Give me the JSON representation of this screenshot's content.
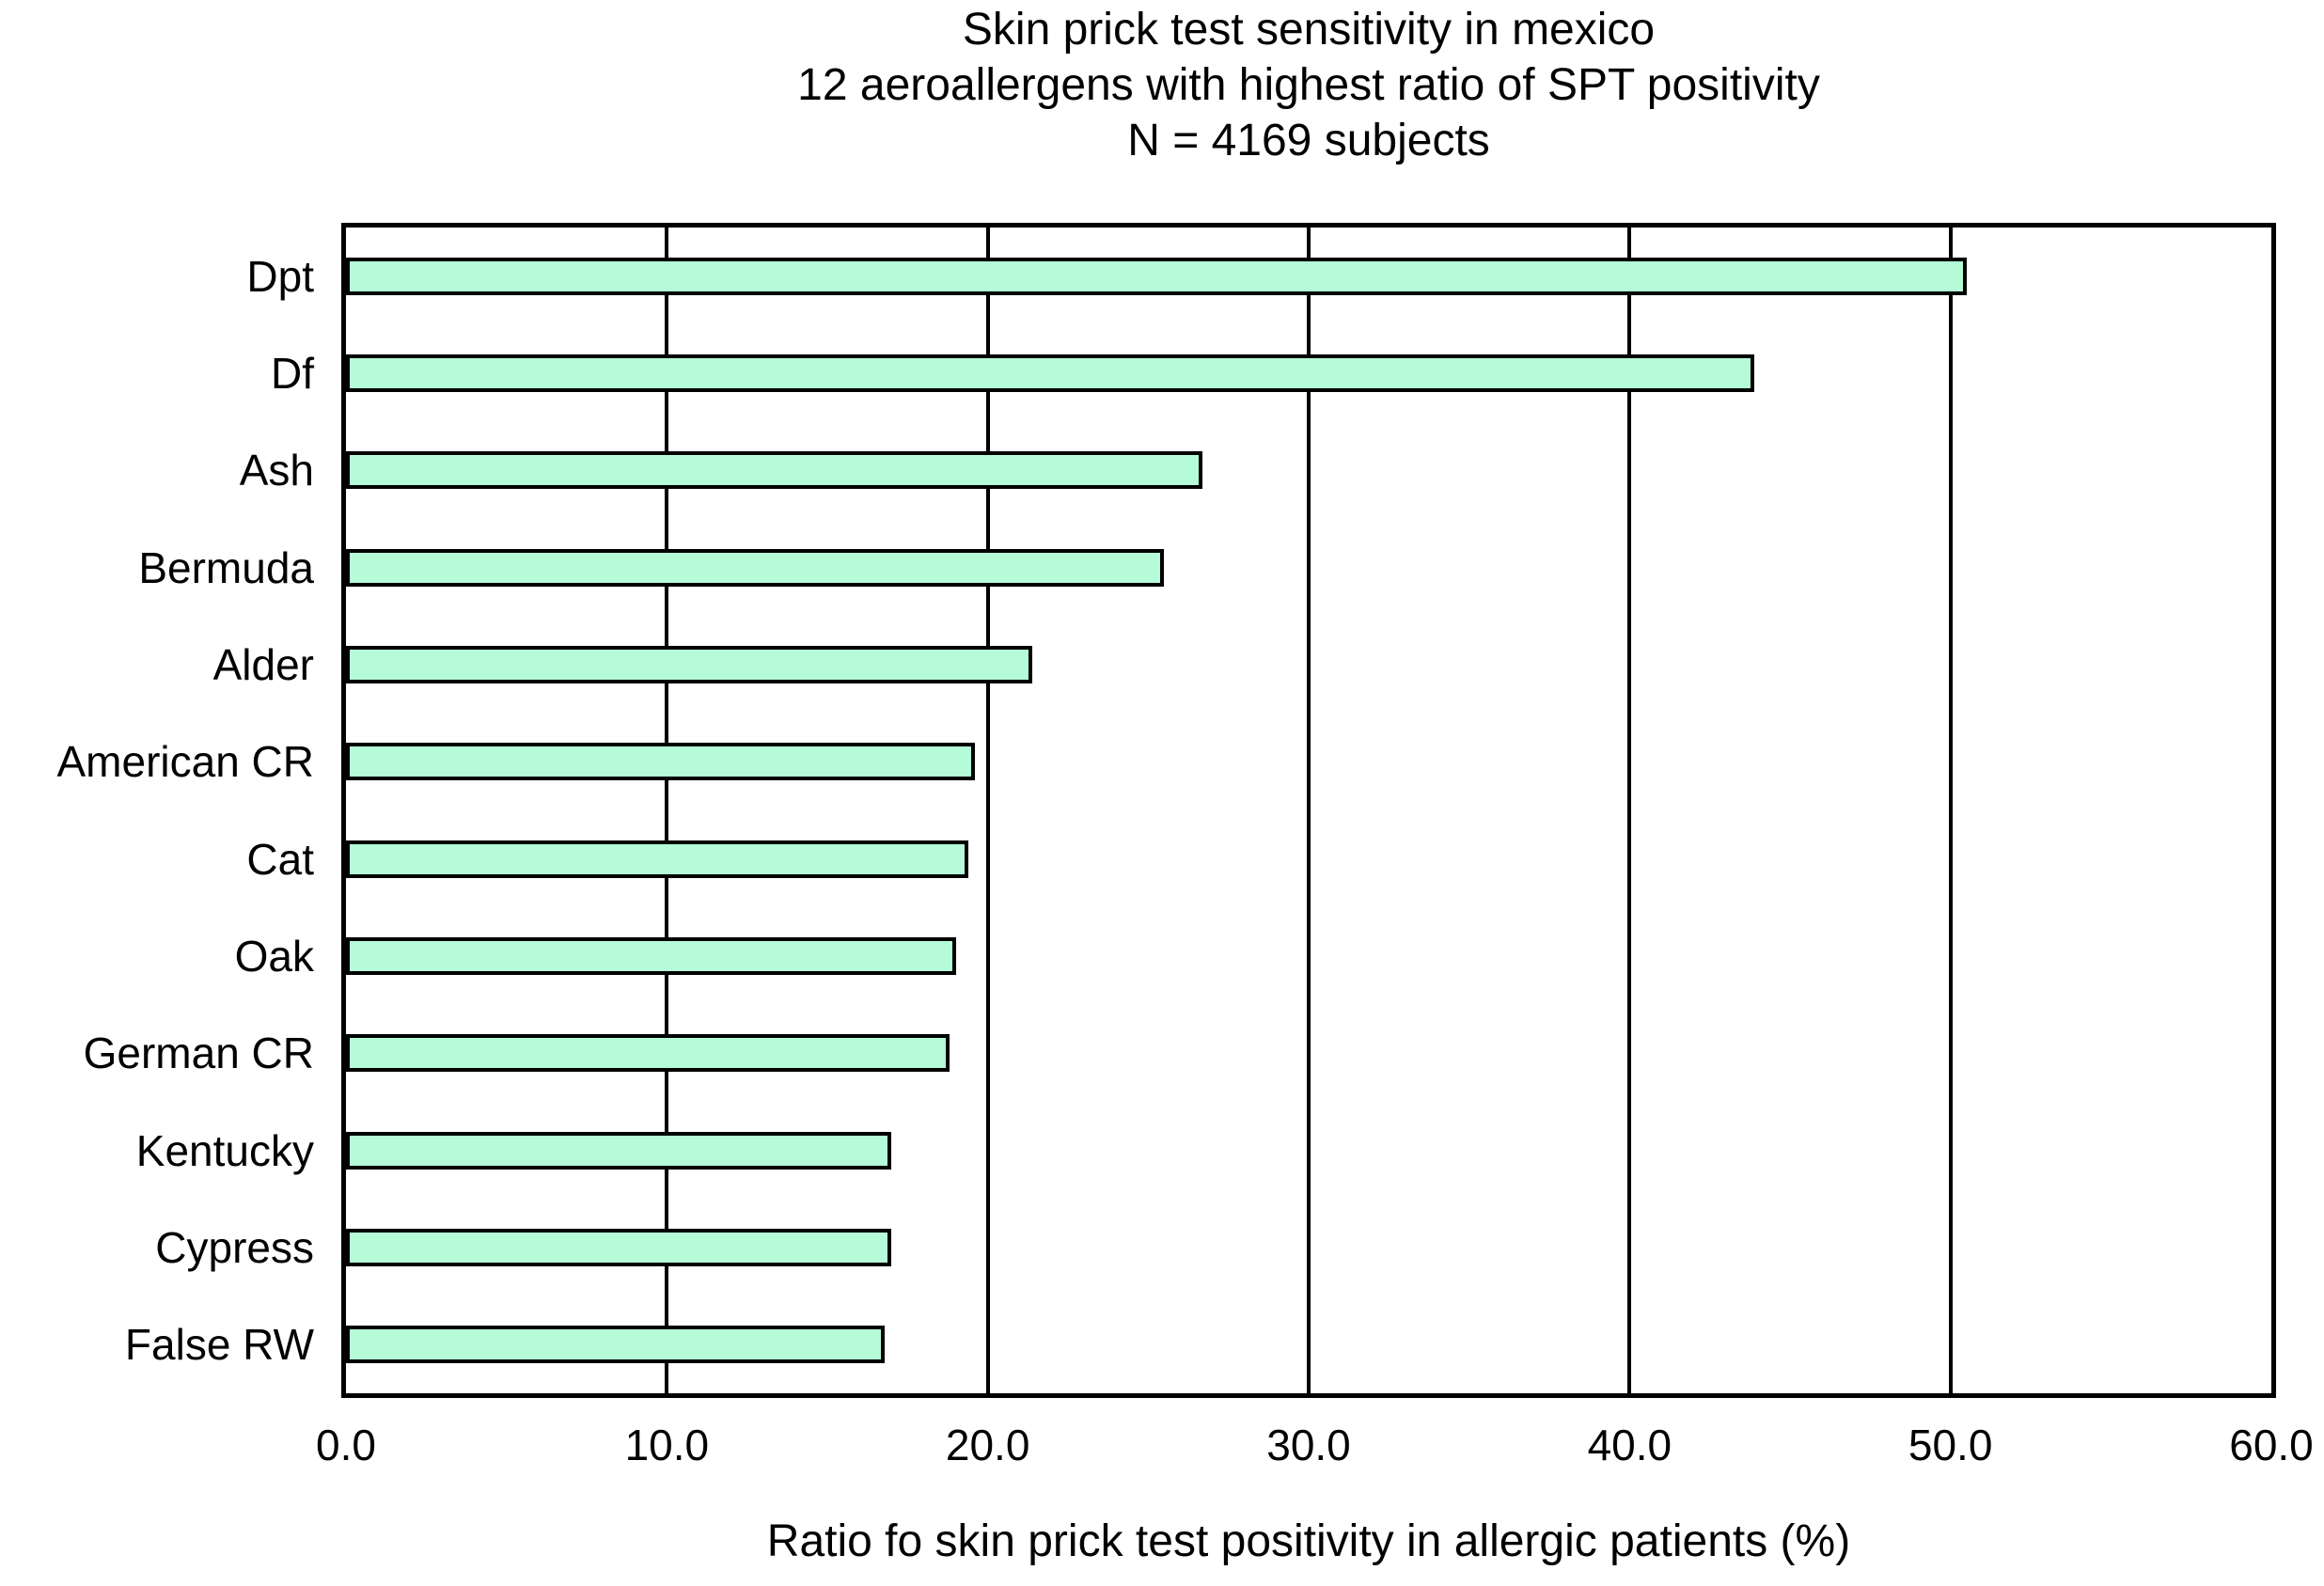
{
  "chart_data": {
    "type": "bar",
    "orientation": "horizontal",
    "title": "Skin prick test sensitivity in mexico",
    "subtitle": "12 aeroallergens with highest ratio of SPT positivity",
    "subtitle2": "N = 4169 subjects",
    "categories": [
      "Dpt",
      "Df",
      "Ash",
      "Bermuda",
      "Alder",
      "American CR",
      "Cat",
      "Oak",
      "German CR",
      "Kentucky",
      "Cypress",
      "False RW"
    ],
    "values": [
      50.5,
      43.9,
      26.7,
      25.5,
      21.4,
      19.6,
      19.4,
      19.0,
      18.8,
      17.0,
      17.0,
      16.8
    ],
    "xlabel": "Ratio fo skin prick test positivity in allergic patients (%)",
    "xlim": [
      0,
      60
    ],
    "xticks": [
      "0.0",
      "10.0",
      "20.0",
      "30.0",
      "40.0",
      "50.0",
      "60.0"
    ],
    "grid": "vertical-gridlines-on",
    "legend": "none",
    "bar_color": "#b5fbd8",
    "bar_border_color": "#000000",
    "axis_color": "#000000",
    "background_color": "#ffffff"
  }
}
